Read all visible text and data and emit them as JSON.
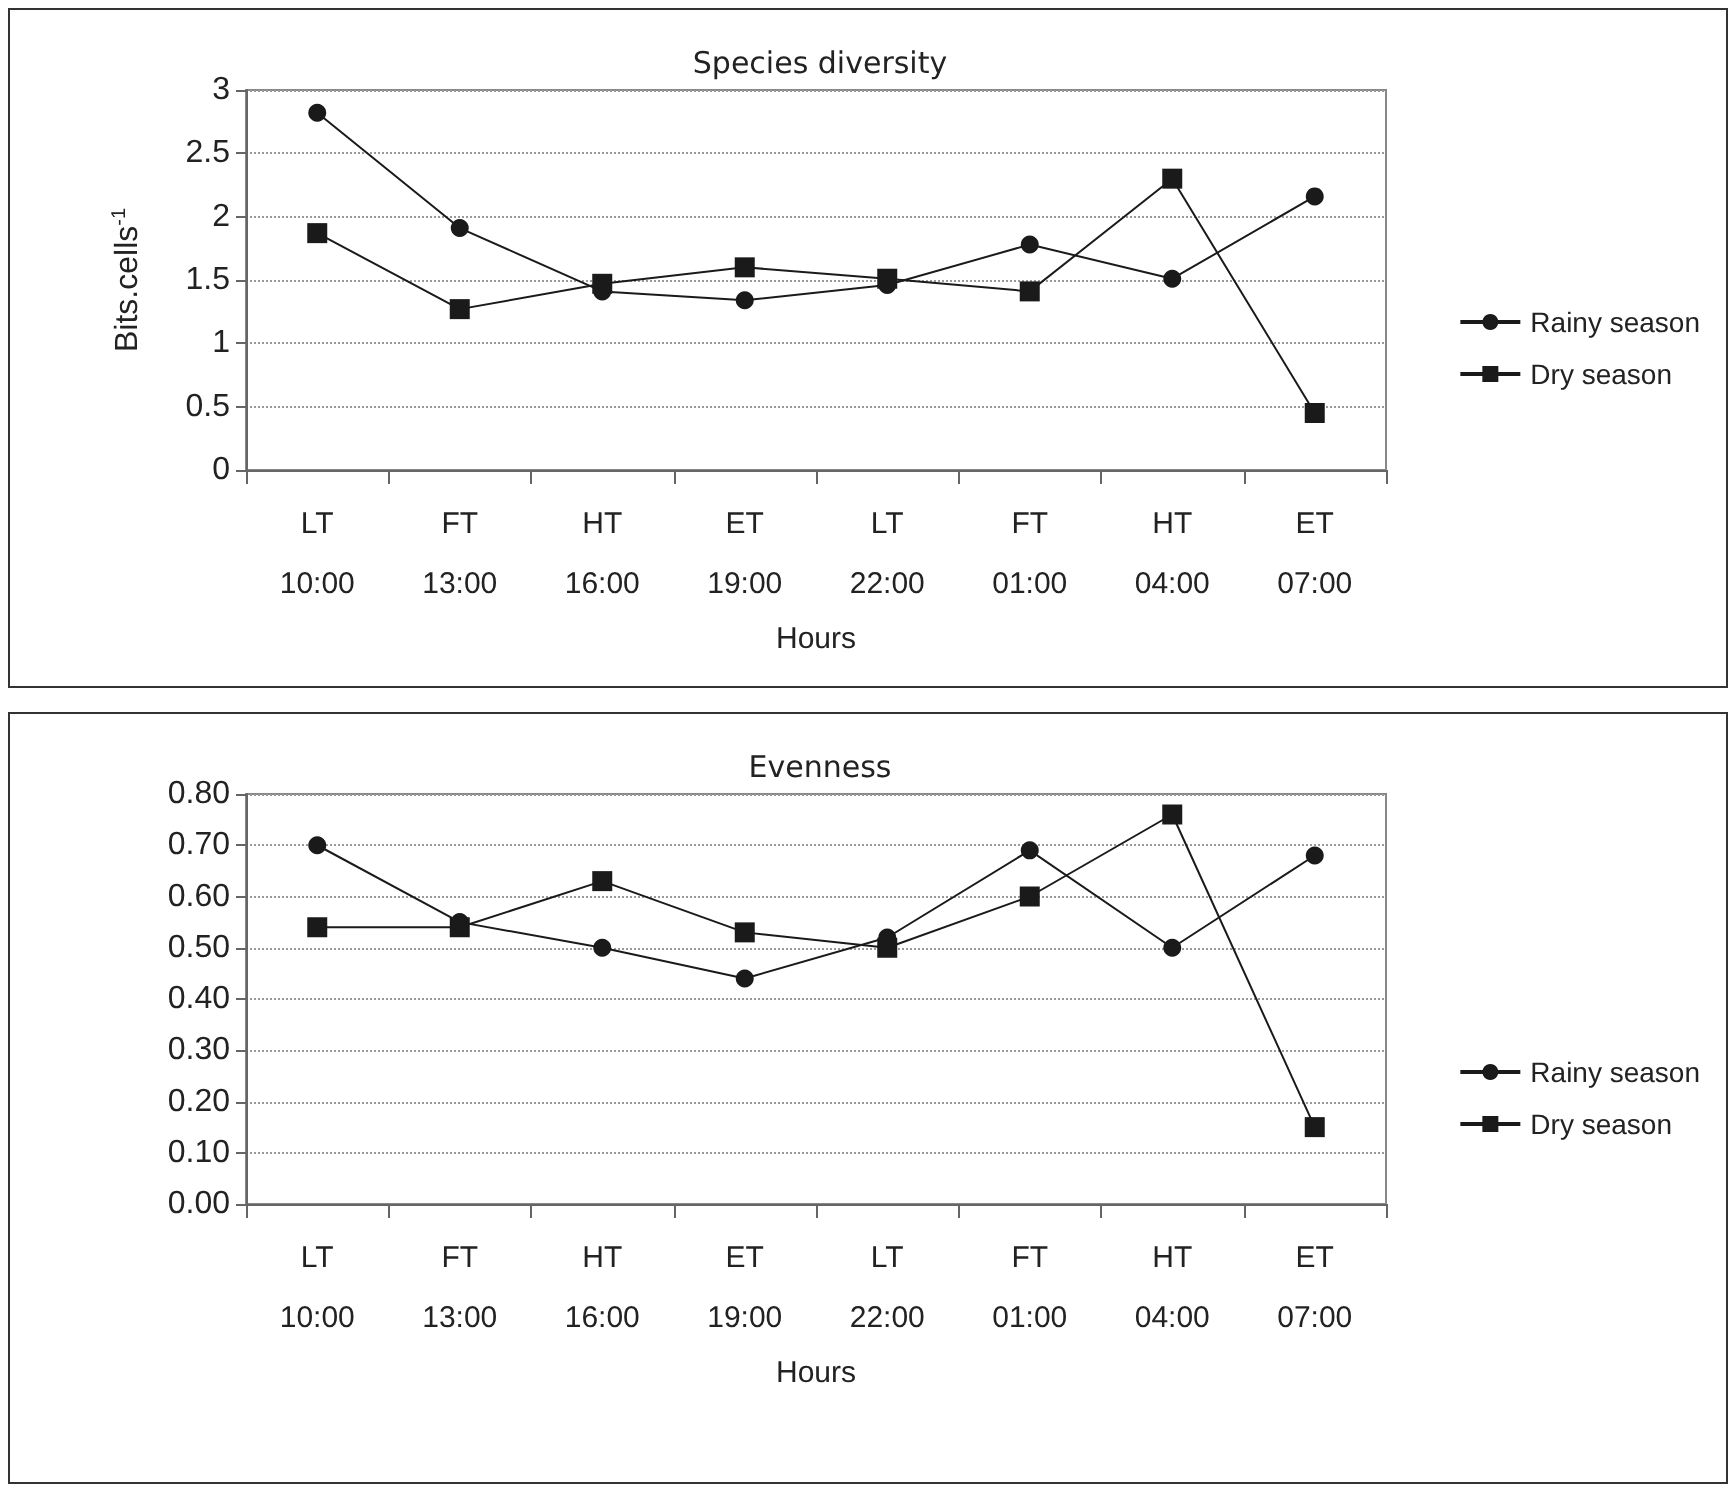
{
  "chart_data": [
    {
      "type": "line",
      "title": "Species diversity",
      "xlabel": "Hours",
      "ylabel": "Bits.cells$^{-1}$",
      "categories": [
        "LT\n10:00",
        "FT\n13:00",
        "HT\n16:00",
        "ET\n19:00",
        "LT\n22:00",
        "FT\n01:00",
        "HT\n04:00",
        "ET\n07:00"
      ],
      "series": [
        {
          "name": "Rainy season",
          "color": "#1a1a1a",
          "marker": "circle",
          "values": [
            2.82,
            1.91,
            1.41,
            1.34,
            1.46,
            1.78,
            1.51,
            2.16
          ]
        },
        {
          "name": "Dry season",
          "color": "#1a1a1a",
          "marker": "square",
          "values": [
            1.87,
            1.27,
            1.47,
            1.6,
            1.51,
            1.41,
            2.3,
            0.45
          ]
        }
      ],
      "ylim": [
        0,
        3
      ],
      "yticks": [
        0,
        0.5,
        1,
        1.5,
        2,
        2.5,
        3
      ],
      "grid": "y",
      "legend": "right",
      "line_style": "solid"
    },
    {
      "type": "line",
      "title": "Evenness",
      "xlabel": "Hours",
      "categories": [
        "LT\n10:00",
        "FT\n13:00",
        "HT\n16:00",
        "ET\n19:00",
        "LT\n22:00",
        "FT\n01:00",
        "HT\n04:00",
        "ET\n07:00"
      ],
      "series": [
        {
          "name": "Rainy season",
          "color": "#1a1a1a",
          "marker": "circle",
          "values": [
            0.7,
            0.55,
            0.5,
            0.44,
            0.52,
            0.69,
            0.5,
            0.68
          ]
        },
        {
          "name": "Dry season",
          "color": "#1a1a1a",
          "marker": "square",
          "values": [
            0.54,
            0.54,
            0.63,
            0.53,
            0.5,
            0.6,
            0.76,
            0.15
          ]
        }
      ],
      "ylim": [
        0,
        0.8
      ],
      "yticks": [
        {
          "value": 0,
          "label": "0.00"
        },
        {
          "value": 0.1,
          "label": "0.10"
        },
        {
          "value": 0.2,
          "label": "0.20"
        },
        {
          "value": 0.3,
          "label": "0.30"
        },
        {
          "value": 0.4,
          "label": "0.40"
        },
        {
          "value": 0.5,
          "label": "0.50"
        },
        {
          "value": 0.6,
          "label": "0.60"
        },
        {
          "value": 0.7,
          "label": "0.70"
        },
        {
          "value": 0.8,
          "label": "0.80"
        }
      ],
      "grid": "y",
      "legend": "right",
      "line_style": "solid"
    }
  ]
}
